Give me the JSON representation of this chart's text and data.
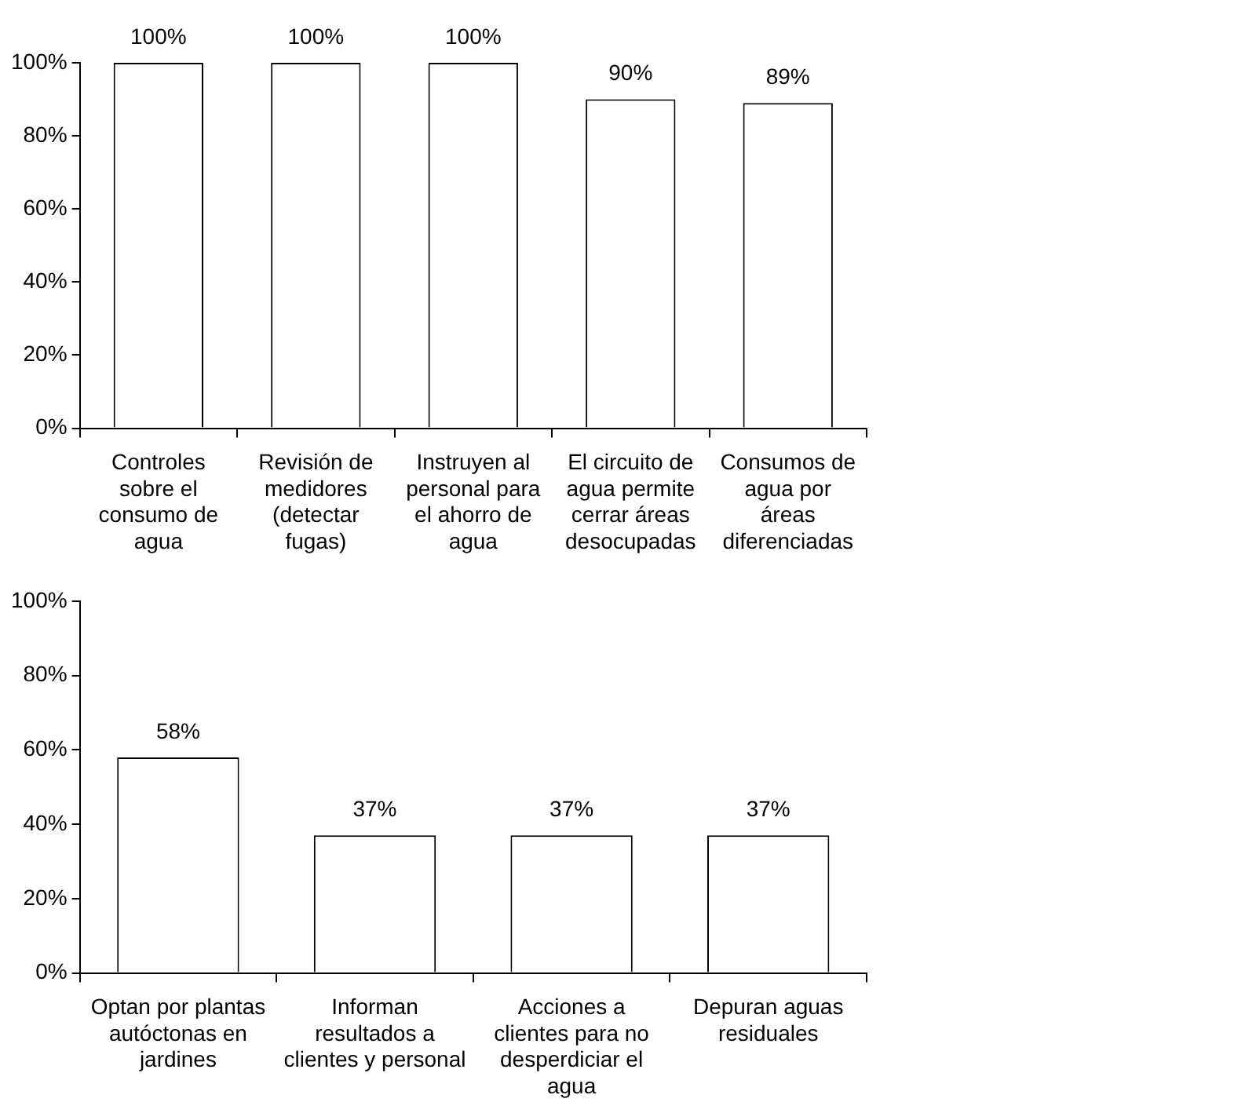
{
  "chart_data": [
    {
      "type": "bar",
      "categories": [
        "Controles sobre el consumo de agua",
        "Revisión de medidores (detectar fugas)",
        "Instruyen al personal para el ahorro de agua",
        "El circuito de agua permite cerrar áreas desocupadas",
        "Consumos de agua por áreas diferenciadas"
      ],
      "values": [
        100,
        100,
        100,
        90,
        89
      ],
      "value_labels": [
        "100%",
        "100%",
        "100%",
        "90%",
        "89%"
      ],
      "color": "#ffffff",
      "ylim": [
        0,
        100
      ],
      "yticks": [
        {
          "value": 0,
          "label": "0%"
        },
        {
          "value": 20,
          "label": "20%"
        },
        {
          "value": 40,
          "label": "40%"
        },
        {
          "value": 60,
          "label": "60%"
        },
        {
          "value": 80,
          "label": "80%"
        },
        {
          "value": 100,
          "label": "100%"
        }
      ],
      "grid": false,
      "legend": false
    },
    {
      "type": "bar",
      "categories": [
        "Optan por plantas autóctonas en jardines",
        "Informan resultados a clientes y personal",
        "Acciones a clientes para no desperdiciar el agua",
        "Depuran aguas residuales"
      ],
      "values": [
        58,
        37,
        37,
        37
      ],
      "value_labels": [
        "58%",
        "37%",
        "37%",
        "37%"
      ],
      "color": "#ffffff",
      "ylim": [
        0,
        100
      ],
      "yticks": [
        {
          "value": 0,
          "label": "0%"
        },
        {
          "value": 20,
          "label": "20%"
        },
        {
          "value": 40,
          "label": "40%"
        },
        {
          "value": 60,
          "label": "60%"
        },
        {
          "value": 80,
          "label": "80%"
        },
        {
          "value": 100,
          "label": "100%"
        }
      ],
      "grid": false,
      "legend": false
    }
  ]
}
